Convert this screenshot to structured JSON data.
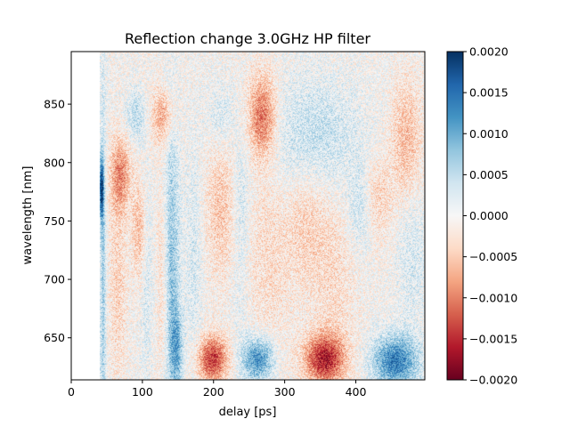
{
  "chart_data": {
    "type": "heatmap",
    "title": "Reflection change 3.0GHz HP filter",
    "xlabel": "delay [ps]",
    "ylabel": "wavelength [nm]",
    "xlim": [
      0,
      497
    ],
    "ylim": [
      614,
      895
    ],
    "data_extent_x": [
      40,
      497
    ],
    "x_ticks": [
      0,
      100,
      200,
      300,
      400
    ],
    "y_ticks": [
      650,
      700,
      750,
      800,
      850
    ],
    "colormap": "RdBu",
    "colorbar": {
      "vmin": -0.002,
      "vmax": 0.002,
      "ticks": [
        0.002,
        0.0015,
        0.001,
        0.0005,
        0.0,
        -0.0005,
        -0.001,
        -0.0015,
        -0.002
      ],
      "tick_labels": [
        "0.0020",
        "0.0015",
        "0.0010",
        "0.0005",
        "0.0000",
        "−0.0005",
        "−0.0010",
        "−0.0015",
        "−0.0020"
      ]
    },
    "features": [
      {
        "x": 42,
        "y": 778,
        "sx": 2,
        "sy": 18,
        "value": 0.0018
      },
      {
        "x": 44,
        "y": 700,
        "sx": 3,
        "sy": 120,
        "value": 0.0007
      },
      {
        "x": 68,
        "y": 790,
        "sx": 10,
        "sy": 22,
        "value": -0.0009
      },
      {
        "x": 65,
        "y": 700,
        "sx": 9,
        "sy": 60,
        "value": -0.0004
      },
      {
        "x": 90,
        "y": 840,
        "sx": 10,
        "sy": 15,
        "value": 0.0005
      },
      {
        "x": 95,
        "y": 742,
        "sx": 7,
        "sy": 30,
        "value": -0.0006
      },
      {
        "x": 105,
        "y": 700,
        "sx": 6,
        "sy": 60,
        "value": 0.0003
      },
      {
        "x": 128,
        "y": 840,
        "sx": 12,
        "sy": 16,
        "value": -0.0007
      },
      {
        "x": 128,
        "y": 700,
        "sx": 6,
        "sy": 70,
        "value": -0.0004
      },
      {
        "x": 140,
        "y": 710,
        "sx": 8,
        "sy": 90,
        "value": 0.0008
      },
      {
        "x": 148,
        "y": 640,
        "sx": 6,
        "sy": 25,
        "value": 0.0008
      },
      {
        "x": 172,
        "y": 720,
        "sx": 8,
        "sy": 70,
        "value": 0.0003
      },
      {
        "x": 198,
        "y": 632,
        "sx": 15,
        "sy": 14,
        "value": -0.0014
      },
      {
        "x": 210,
        "y": 760,
        "sx": 15,
        "sy": 40,
        "value": -0.0005
      },
      {
        "x": 210,
        "y": 840,
        "sx": 14,
        "sy": 18,
        "value": 0.0003
      },
      {
        "x": 238,
        "y": 770,
        "sx": 8,
        "sy": 35,
        "value": 0.0003
      },
      {
        "x": 238,
        "y": 700,
        "sx": 10,
        "sy": 60,
        "value": 0.0002
      },
      {
        "x": 262,
        "y": 632,
        "sx": 15,
        "sy": 13,
        "value": 0.0013
      },
      {
        "x": 268,
        "y": 840,
        "sx": 14,
        "sy": 25,
        "value": -0.0011
      },
      {
        "x": 275,
        "y": 720,
        "sx": 25,
        "sy": 60,
        "value": -0.0003
      },
      {
        "x": 340,
        "y": 820,
        "sx": 45,
        "sy": 35,
        "value": 0.0005
      },
      {
        "x": 330,
        "y": 750,
        "sx": 20,
        "sy": 40,
        "value": -0.0004
      },
      {
        "x": 355,
        "y": 632,
        "sx": 20,
        "sy": 15,
        "value": -0.0015
      },
      {
        "x": 370,
        "y": 700,
        "sx": 20,
        "sy": 60,
        "value": -0.0003
      },
      {
        "x": 405,
        "y": 760,
        "sx": 12,
        "sy": 25,
        "value": 0.0004
      },
      {
        "x": 430,
        "y": 770,
        "sx": 15,
        "sy": 25,
        "value": -0.0004
      },
      {
        "x": 455,
        "y": 630,
        "sx": 22,
        "sy": 16,
        "value": 0.0014
      },
      {
        "x": 470,
        "y": 820,
        "sx": 15,
        "sy": 35,
        "value": -0.0006
      },
      {
        "x": 480,
        "y": 720,
        "sx": 15,
        "sy": 40,
        "value": 0.0003
      }
    ],
    "grid": false
  }
}
